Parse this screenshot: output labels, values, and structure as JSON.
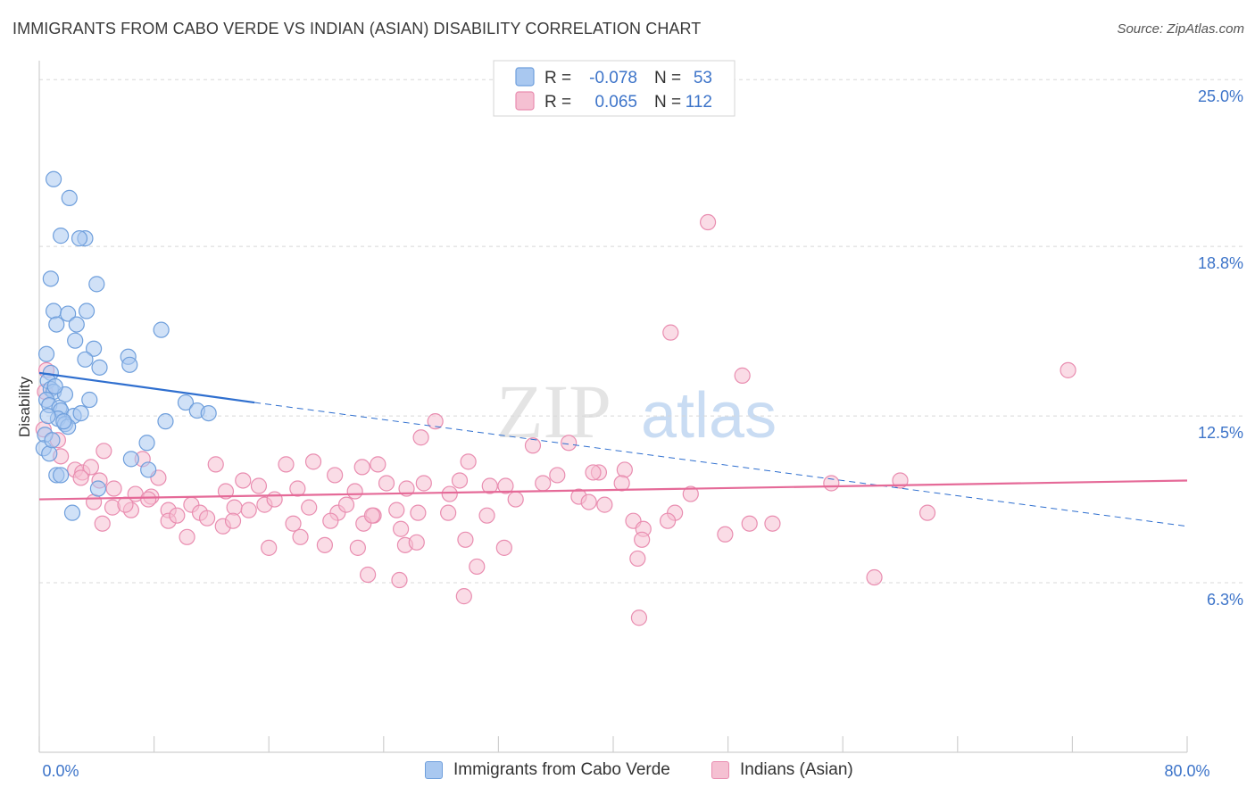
{
  "title": "IMMIGRANTS FROM CABO VERDE VS INDIAN (ASIAN) DISABILITY CORRELATION CHART",
  "source": "Source: ZipAtlas.com",
  "watermark": {
    "zip": "ZIP",
    "atlas": "atlas"
  },
  "legend_box": [
    {
      "r_label": "R =",
      "r_value": "-0.078",
      "n_label": "N =",
      "n_value": "53"
    },
    {
      "r_label": "R =",
      "r_value": "0.065",
      "n_label": "N =",
      "n_value": "112"
    }
  ],
  "colors": {
    "blue_fill": "#a9c8f0",
    "blue_stroke": "#6f9fdc",
    "blue_line": "#2f6fcf",
    "pink_fill": "#f5c0d2",
    "pink_stroke": "#e98db0",
    "pink_line": "#e56a98",
    "value_text": "#3d74c9",
    "grid": "#d8d8d8"
  },
  "chart_data": {
    "type": "scatter",
    "title": "IMMIGRANTS FROM CABO VERDE VS INDIAN (ASIAN) DISABILITY CORRELATION CHART",
    "xlabel": "",
    "ylabel": "Disability",
    "xlim": [
      0,
      80
    ],
    "ylim": [
      0,
      26.5
    ],
    "x_tick_labels": [
      "0.0%",
      "80.0%"
    ],
    "y_ticks": [
      6.3,
      12.5,
      18.8,
      25.0
    ],
    "y_tick_labels": [
      "6.3%",
      "12.5%",
      "18.8%",
      "25.0%"
    ],
    "series": [
      {
        "name": "Immigrants from Cabo Verde",
        "r": -0.078,
        "n": 53,
        "trend": {
          "x0": 0,
          "y0": 14.1,
          "x1": 15,
          "y1": 13.0,
          "x_dash_end": 80,
          "y_dash_end": 8.4
        },
        "points": [
          [
            1.0,
            21.3
          ],
          [
            2.1,
            20.6
          ],
          [
            1.5,
            19.2
          ],
          [
            3.2,
            19.1
          ],
          [
            2.8,
            19.1
          ],
          [
            0.8,
            17.6
          ],
          [
            4.0,
            17.4
          ],
          [
            1.0,
            16.4
          ],
          [
            2.0,
            16.3
          ],
          [
            3.3,
            16.4
          ],
          [
            1.2,
            15.9
          ],
          [
            2.6,
            15.9
          ],
          [
            8.5,
            15.7
          ],
          [
            2.5,
            15.3
          ],
          [
            3.8,
            15.0
          ],
          [
            0.5,
            14.8
          ],
          [
            6.2,
            14.7
          ],
          [
            3.2,
            14.6
          ],
          [
            6.3,
            14.4
          ],
          [
            4.2,
            14.3
          ],
          [
            0.8,
            14.1
          ],
          [
            0.6,
            13.8
          ],
          [
            0.8,
            13.5
          ],
          [
            1.0,
            13.4
          ],
          [
            1.8,
            13.3
          ],
          [
            0.5,
            13.1
          ],
          [
            3.5,
            13.1
          ],
          [
            10.2,
            13.0
          ],
          [
            0.7,
            12.9
          ],
          [
            1.4,
            12.8
          ],
          [
            1.5,
            12.7
          ],
          [
            11.0,
            12.7
          ],
          [
            11.8,
            12.6
          ],
          [
            2.4,
            12.5
          ],
          [
            1.3,
            12.4
          ],
          [
            8.8,
            12.3
          ],
          [
            1.8,
            12.2
          ],
          [
            2.0,
            12.1
          ],
          [
            1.7,
            12.3
          ],
          [
            0.4,
            11.8
          ],
          [
            7.5,
            11.5
          ],
          [
            0.3,
            11.3
          ],
          [
            0.7,
            11.1
          ],
          [
            6.4,
            10.9
          ],
          [
            7.6,
            10.5
          ],
          [
            1.2,
            10.3
          ],
          [
            1.5,
            10.3
          ],
          [
            4.1,
            9.8
          ],
          [
            2.3,
            8.9
          ],
          [
            0.6,
            12.5
          ],
          [
            1.1,
            13.6
          ],
          [
            2.9,
            12.6
          ],
          [
            0.9,
            11.6
          ]
        ]
      },
      {
        "name": "Indians (Asian)",
        "r": 0.065,
        "n": 112,
        "trend": {
          "x0": 0,
          "y0": 9.4,
          "x1": 80,
          "y1": 10.1
        },
        "points": [
          [
            46.6,
            19.7
          ],
          [
            44.0,
            15.6
          ],
          [
            71.7,
            14.2
          ],
          [
            49.0,
            14.0
          ],
          [
            0.5,
            14.2
          ],
          [
            27.6,
            12.3
          ],
          [
            26.6,
            11.7
          ],
          [
            36.9,
            11.5
          ],
          [
            34.4,
            11.4
          ],
          [
            0.3,
            12.0
          ],
          [
            1.5,
            11.0
          ],
          [
            4.5,
            11.2
          ],
          [
            7.2,
            10.9
          ],
          [
            12.3,
            10.7
          ],
          [
            17.2,
            10.7
          ],
          [
            19.1,
            10.8
          ],
          [
            22.5,
            10.6
          ],
          [
            23.6,
            10.7
          ],
          [
            29.9,
            10.8
          ],
          [
            40.8,
            10.5
          ],
          [
            39.0,
            10.4
          ],
          [
            36.1,
            10.3
          ],
          [
            38.6,
            10.4
          ],
          [
            20.6,
            10.3
          ],
          [
            14.2,
            10.1
          ],
          [
            26.8,
            10.0
          ],
          [
            29.3,
            10.1
          ],
          [
            40.6,
            10.0
          ],
          [
            35.1,
            10.0
          ],
          [
            31.4,
            9.9
          ],
          [
            24.2,
            10.0
          ],
          [
            8.3,
            10.2
          ],
          [
            2.5,
            10.5
          ],
          [
            3.0,
            10.4
          ],
          [
            3.6,
            10.6
          ],
          [
            4.2,
            10.1
          ],
          [
            5.2,
            9.8
          ],
          [
            6.7,
            9.6
          ],
          [
            7.8,
            9.5
          ],
          [
            13.0,
            9.7
          ],
          [
            15.3,
            9.9
          ],
          [
            18.0,
            9.8
          ],
          [
            22.0,
            9.7
          ],
          [
            25.6,
            9.8
          ],
          [
            28.6,
            9.6
          ],
          [
            32.5,
            9.9
          ],
          [
            37.6,
            9.5
          ],
          [
            38.3,
            9.3
          ],
          [
            45.4,
            9.6
          ],
          [
            55.2,
            10.0
          ],
          [
            60.0,
            10.1
          ],
          [
            3.8,
            9.3
          ],
          [
            5.1,
            9.1
          ],
          [
            6.4,
            9.0
          ],
          [
            7.6,
            9.4
          ],
          [
            9.0,
            9.0
          ],
          [
            10.6,
            9.2
          ],
          [
            11.2,
            8.9
          ],
          [
            13.6,
            9.1
          ],
          [
            15.7,
            9.2
          ],
          [
            16.4,
            9.4
          ],
          [
            18.8,
            9.1
          ],
          [
            20.8,
            8.9
          ],
          [
            23.3,
            8.8
          ],
          [
            24.9,
            9.0
          ],
          [
            26.4,
            8.9
          ],
          [
            28.5,
            8.9
          ],
          [
            31.2,
            8.8
          ],
          [
            39.4,
            9.2
          ],
          [
            44.3,
            8.9
          ],
          [
            61.9,
            8.9
          ],
          [
            4.4,
            8.5
          ],
          [
            9.0,
            8.6
          ],
          [
            9.6,
            8.8
          ],
          [
            11.7,
            8.7
          ],
          [
            12.8,
            8.4
          ],
          [
            13.5,
            8.6
          ],
          [
            17.7,
            8.5
          ],
          [
            20.3,
            8.6
          ],
          [
            22.6,
            8.5
          ],
          [
            23.2,
            8.8
          ],
          [
            25.2,
            8.3
          ],
          [
            41.4,
            8.6
          ],
          [
            43.8,
            8.6
          ],
          [
            49.5,
            8.5
          ],
          [
            51.1,
            8.5
          ],
          [
            10.3,
            8.0
          ],
          [
            18.2,
            8.0
          ],
          [
            19.9,
            7.7
          ],
          [
            25.5,
            7.7
          ],
          [
            26.3,
            7.8
          ],
          [
            29.7,
            7.9
          ],
          [
            32.4,
            7.6
          ],
          [
            16.0,
            7.6
          ],
          [
            22.2,
            7.6
          ],
          [
            42.1,
            8.3
          ],
          [
            47.8,
            8.1
          ],
          [
            41.7,
            7.2
          ],
          [
            30.5,
            6.9
          ],
          [
            22.9,
            6.6
          ],
          [
            25.1,
            6.4
          ],
          [
            29.6,
            5.8
          ],
          [
            41.8,
            5.0
          ],
          [
            58.2,
            6.5
          ],
          [
            0.4,
            13.4
          ],
          [
            1.3,
            11.6
          ],
          [
            2.9,
            10.2
          ],
          [
            6.0,
            9.2
          ],
          [
            42.0,
            7.9
          ],
          [
            33.2,
            9.4
          ],
          [
            21.4,
            9.2
          ],
          [
            14.6,
            9.0
          ]
        ]
      }
    ]
  }
}
